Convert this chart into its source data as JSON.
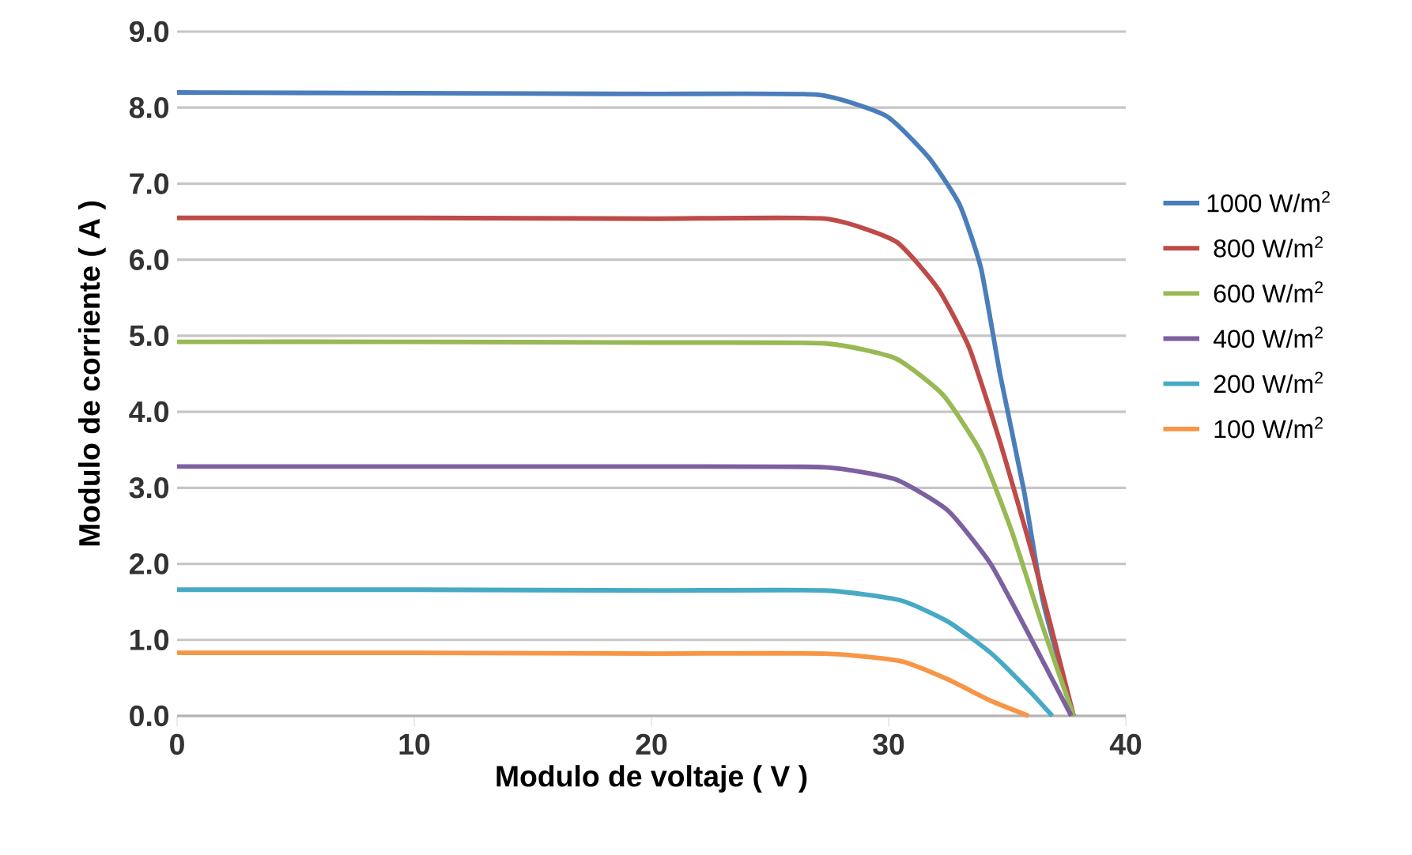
{
  "chart_data": {
    "type": "line",
    "xlabel": "Modulo de voltaje ( V )",
    "ylabel": "Modulo de corriente ( A )",
    "xlim": [
      0,
      40
    ],
    "xticks": [
      0,
      10,
      20,
      30,
      40
    ],
    "ylim": [
      0,
      9
    ],
    "yticks": [
      {
        "value": 0,
        "label": "0.0"
      },
      {
        "value": 1,
        "label": "1.0"
      },
      {
        "value": 2,
        "label": "2.0"
      },
      {
        "value": 3,
        "label": "3.0"
      },
      {
        "value": 4,
        "label": "4.0"
      },
      {
        "value": 5,
        "label": "5.0"
      },
      {
        "value": 6,
        "label": "6.0"
      },
      {
        "value": 7,
        "label": "7.0"
      },
      {
        "value": 8,
        "label": "8.0"
      },
      {
        "value": 9,
        "label": "9.0"
      }
    ],
    "grid": "y",
    "legend": "right",
    "marker": "none",
    "line_style": "solid",
    "series": [
      {
        "name": "1000 W/m$^{2}$",
        "color": "#4a7ebb",
        "x": [
          0,
          10,
          20,
          27,
          29.9,
          31.7,
          33,
          33.9,
          34.7,
          35.7,
          36.5,
          37.8
        ],
        "values": [
          8.2,
          8.19,
          8.18,
          8.17,
          7.89,
          7.34,
          6.72,
          5.88,
          4.49,
          2.97,
          1.52,
          0
        ]
      },
      {
        "name": "800 W/m$^{2}$",
        "color": "#be4b48",
        "x": [
          0,
          10,
          20,
          27.3,
          30.3,
          32.1,
          33.4,
          34.7,
          36.1,
          37.8
        ],
        "values": [
          6.55,
          6.55,
          6.54,
          6.54,
          6.24,
          5.61,
          4.84,
          3.6,
          2.08,
          0
        ]
      },
      {
        "name": "600 W/m$^{2}$",
        "color": "#98b954",
        "x": [
          0,
          10,
          20,
          27.3,
          30.3,
          32.3,
          33.9,
          35.2,
          36.5,
          37.8
        ],
        "values": [
          4.92,
          4.92,
          4.91,
          4.9,
          4.7,
          4.22,
          3.46,
          2.42,
          1.17,
          0
        ]
      },
      {
        "name": "400 W/m$^{2}$",
        "color": "#7d60a0",
        "x": [
          0,
          10,
          20,
          27.3,
          30.3,
          32.5,
          34.3,
          36.1,
          37.7
        ],
        "values": [
          3.28,
          3.28,
          3.28,
          3.27,
          3.11,
          2.7,
          2.0,
          0.96,
          0
        ]
      },
      {
        "name": "200 W/m$^{2}$",
        "color": "#46aac5",
        "x": [
          0,
          10,
          20,
          27.3,
          30.5,
          32.5,
          34.3,
          35.9,
          36.9
        ],
        "values": [
          1.66,
          1.66,
          1.65,
          1.65,
          1.52,
          1.24,
          0.83,
          0.34,
          0
        ]
      },
      {
        "name": "100 W/m$^{2}$",
        "color": "#f79646",
        "x": [
          0,
          10,
          20,
          27.3,
          30.5,
          32.5,
          34.3,
          35.9
        ],
        "values": [
          0.83,
          0.83,
          0.82,
          0.82,
          0.72,
          0.48,
          0.2,
          0
        ]
      }
    ]
  }
}
